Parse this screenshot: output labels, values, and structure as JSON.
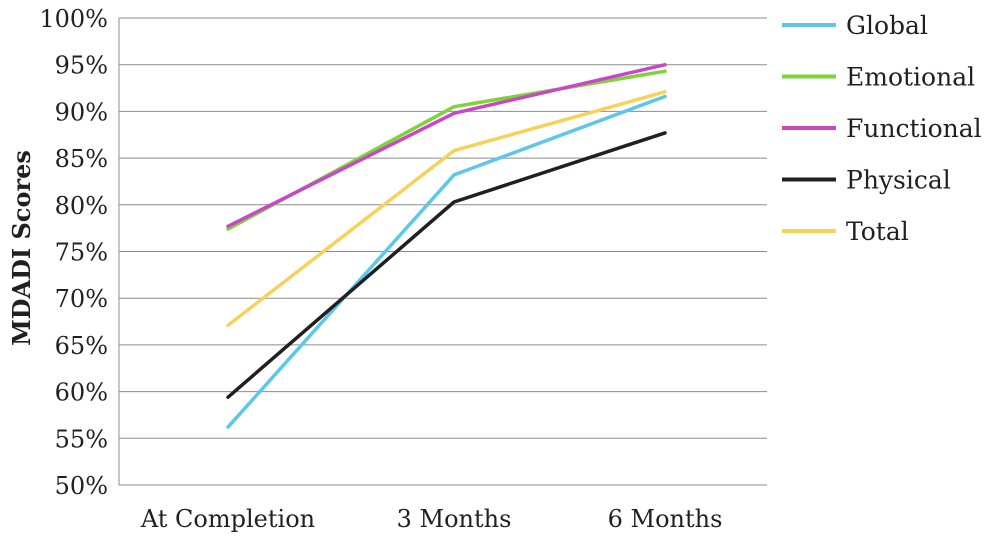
{
  "chart_data": {
    "type": "line",
    "categories": [
      "At Completion",
      "3 Months",
      "6 Months"
    ],
    "ylabel": "MDADI Scores",
    "ylim": [
      50,
      100
    ],
    "yticks": [
      "50%",
      "55%",
      "60%",
      "65%",
      "70%",
      "75%",
      "80%",
      "85%",
      "90%",
      "95%",
      "100%"
    ],
    "grid": true,
    "legend_position": "right",
    "series": [
      {
        "name": "Global",
        "color": "#5bc8ea",
        "values": [
          56.2,
          83.2,
          91.6
        ]
      },
      {
        "name": "Emotional",
        "color": "#7ed33a",
        "values": [
          77.4,
          90.5,
          94.3
        ]
      },
      {
        "name": "Functional",
        "color": "#c946c8",
        "values": [
          77.7,
          89.8,
          95.0
        ]
      },
      {
        "name": "Physical",
        "color": "#231f20",
        "values": [
          59.4,
          80.3,
          87.7
        ]
      },
      {
        "name": "Total",
        "color": "#f7d15a",
        "values": [
          67.1,
          85.8,
          92.1
        ]
      }
    ]
  }
}
